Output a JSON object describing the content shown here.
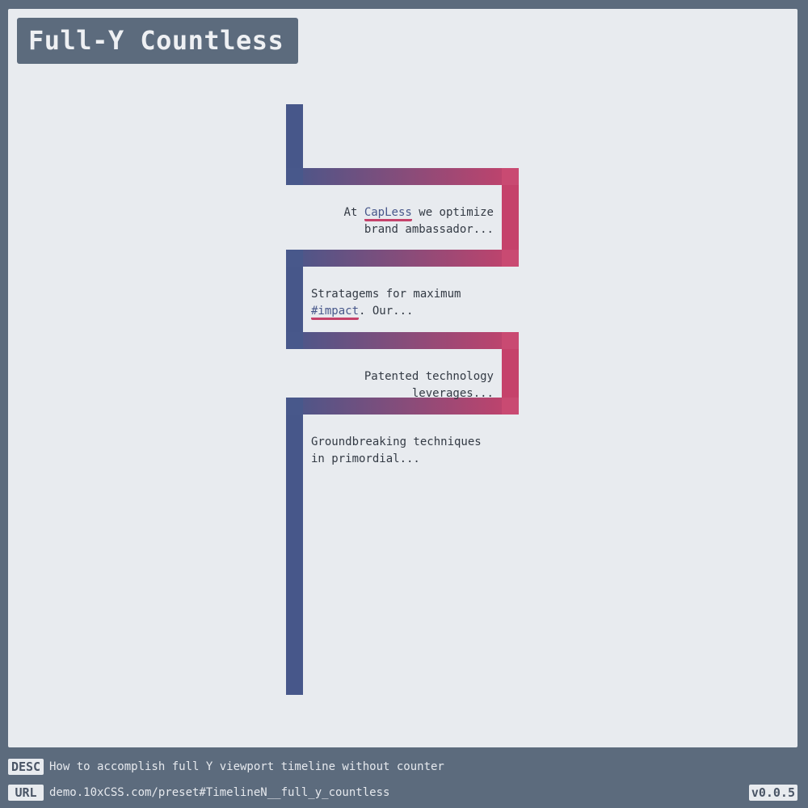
{
  "title": "Full-Y Countless",
  "timeline": {
    "items": [
      {
        "pre": "At ",
        "link": "CapLess",
        "post": " we optimize brand ambassador..."
      },
      {
        "pre": "Stratagems for maximum ",
        "link": "#impact",
        "post": ". Our..."
      },
      {
        "pre": "Patented technology leverages...",
        "link": "",
        "post": ""
      },
      {
        "pre": "Groundbreaking techniques in primordial...",
        "link": "",
        "post": ""
      }
    ]
  },
  "colors": {
    "accent_blue": "#47578a",
    "accent_red": "#c5426b",
    "page_bg": "#5c6b7d",
    "canvas_bg": "#e8ebef"
  },
  "footer": {
    "desc_tag": "DESC",
    "desc_text": "How to accomplish full Y viewport timeline without counter",
    "url_tag": "URL",
    "url_text": "demo.10xCSS.com/preset#TimelineN__full_y_countless",
    "version": "v0.0.5"
  }
}
